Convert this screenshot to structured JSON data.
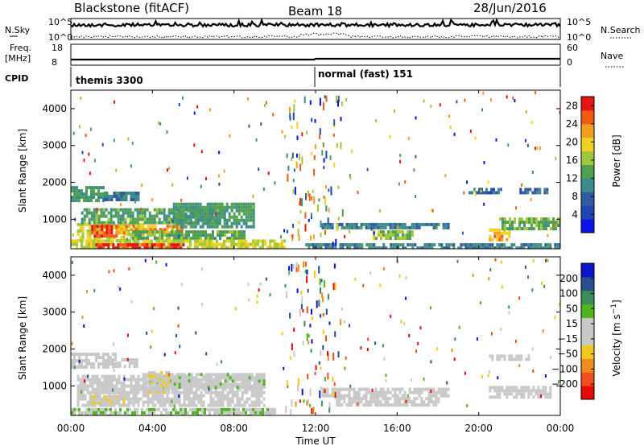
{
  "header": {
    "station": "Blackstone (fitACF)",
    "beam": "Beam 18",
    "date": "28/Jun/2016"
  },
  "top_panels": {
    "nsky_label": "N.Sky",
    "nsky_ticks": [
      "10^5",
      "10^0"
    ],
    "nsearch_label": "N.Search",
    "freq_label": "Freq.",
    "freq_unit": "[MHz]",
    "freq_ticks": [
      "18",
      "8"
    ],
    "nave_label": "Nave",
    "nave_ticks": [
      "60",
      "0"
    ],
    "cpid_label": "CPID",
    "cpid_segments": [
      {
        "label": "themis 3300",
        "start_hour": 0
      },
      {
        "label": "normal (fast) 151",
        "start_hour": 12
      }
    ]
  },
  "x_axis": {
    "label": "Time UT",
    "ticks": [
      "00:00",
      "04:00",
      "08:00",
      "12:00",
      "16:00",
      "20:00",
      "00:00"
    ],
    "range_hours": [
      0,
      24
    ]
  },
  "colors": {
    "power": [
      "#0a14e6",
      "#1e46b4",
      "#325aa0",
      "#3c8c8c",
      "#50a050",
      "#a0c83c",
      "#f0d21e",
      "#f0a01e",
      "#f05a14",
      "#e61414"
    ],
    "velocity": [
      "#e60a0a",
      "#f0501e",
      "#f08c1e",
      "#f0c81e",
      "#c8c8c8",
      "#c8c8c8",
      "#50b41e",
      "#3c8c5a",
      "#28508c",
      "#0a14c8"
    ]
  },
  "chart_data": [
    {
      "type": "heatmap",
      "quantity": "power",
      "ylabel": "Slant Range [km]",
      "xlabel": "",
      "ylim": [
        200,
        4500
      ],
      "xlim": [
        0,
        24
      ],
      "y_ticks": [
        "1000",
        "2000",
        "3000",
        "4000"
      ],
      "colorbar": {
        "label": "Power [dB]",
        "ticks": [
          "4",
          "8",
          "12",
          "16",
          "20",
          "24",
          "28"
        ],
        "range": [
          0,
          30
        ]
      },
      "regions": [
        {
          "x0": 0.0,
          "x1": 1.6,
          "y0": 1500,
          "y1": 1900,
          "value": 12
        },
        {
          "x0": 1.6,
          "x1": 3.3,
          "y0": 1550,
          "y1": 1750,
          "value": 10
        },
        {
          "x0": 0.3,
          "x1": 3.5,
          "y0": 450,
          "y1": 900,
          "value": 18
        },
        {
          "x0": 1.0,
          "x1": 2.2,
          "y0": 550,
          "y1": 850,
          "value": 26
        },
        {
          "x0": 2.2,
          "x1": 5.5,
          "y0": 650,
          "y1": 850,
          "value": 22
        },
        {
          "x0": 0.5,
          "x1": 7.5,
          "y0": 950,
          "y1": 1300,
          "value": 13
        },
        {
          "x0": 5.0,
          "x1": 9.0,
          "y0": 800,
          "y1": 1450,
          "value": 12
        },
        {
          "x0": 3.0,
          "x1": 8.5,
          "y0": 500,
          "y1": 700,
          "value": 14
        },
        {
          "x0": 0.0,
          "x1": 10.5,
          "y0": 200,
          "y1": 450,
          "value": 18
        },
        {
          "x0": 1.2,
          "x1": 5.5,
          "y0": 200,
          "y1": 350,
          "value": 28
        },
        {
          "x0": 12.3,
          "x1": 18.5,
          "y0": 750,
          "y1": 900,
          "value": 10
        },
        {
          "x0": 14.8,
          "x1": 16.8,
          "y0": 450,
          "y1": 700,
          "value": 16
        },
        {
          "x0": 20.5,
          "x1": 21.5,
          "y0": 450,
          "y1": 750,
          "value": 22
        },
        {
          "x0": 21.0,
          "x1": 24.0,
          "y0": 750,
          "y1": 1050,
          "value": 14
        },
        {
          "x0": 19.5,
          "x1": 21.0,
          "y0": 1700,
          "y1": 1850,
          "value": 8
        },
        {
          "x0": 22.0,
          "x1": 23.5,
          "y0": 1700,
          "y1": 1850,
          "value": 8
        },
        {
          "x0": 11.5,
          "x1": 24.0,
          "y0": 200,
          "y1": 350,
          "value": 10
        }
      ]
    },
    {
      "type": "heatmap",
      "quantity": "velocity",
      "ylabel": "Slant Range [km]",
      "xlabel": "Time UT",
      "ylim": [
        200,
        4500
      ],
      "xlim": [
        0,
        24
      ],
      "y_ticks": [
        "1000",
        "2000",
        "3000",
        "4000"
      ],
      "colorbar": {
        "label": "Velocity [m s^-1]",
        "ticks": [
          "200",
          "100",
          "50",
          "15",
          "-15",
          "-50",
          "-100",
          "-200"
        ],
        "range": [
          -250,
          250
        ]
      },
      "regions": [
        {
          "x0": 0.0,
          "x1": 2.2,
          "y0": 1500,
          "y1": 1900,
          "value": 0
        },
        {
          "x0": 2.0,
          "x1": 3.3,
          "y0": 1550,
          "y1": 1750,
          "value": 0
        },
        {
          "x0": 0.3,
          "x1": 9.5,
          "y0": 450,
          "y1": 1300,
          "value": 0
        },
        {
          "x0": 3.5,
          "x1": 9.5,
          "y0": 950,
          "y1": 1350,
          "value": 20
        },
        {
          "x0": 3.8,
          "x1": 4.8,
          "y0": 800,
          "y1": 1400,
          "value": -40
        },
        {
          "x0": 1.0,
          "x1": 3.0,
          "y0": 550,
          "y1": 750,
          "value": -30
        },
        {
          "x0": 0.0,
          "x1": 10.0,
          "y0": 200,
          "y1": 400,
          "value": 40
        },
        {
          "x0": 12.3,
          "x1": 18.5,
          "y0": 700,
          "y1": 950,
          "value": 0
        },
        {
          "x0": 20.5,
          "x1": 23.5,
          "y0": 700,
          "y1": 1000,
          "value": 0
        },
        {
          "x0": 20.5,
          "x1": 22.5,
          "y0": 1700,
          "y1": 1850,
          "value": 0
        },
        {
          "x0": 13.0,
          "x1": 18.0,
          "y0": 450,
          "y1": 700,
          "value": 0
        }
      ]
    }
  ]
}
